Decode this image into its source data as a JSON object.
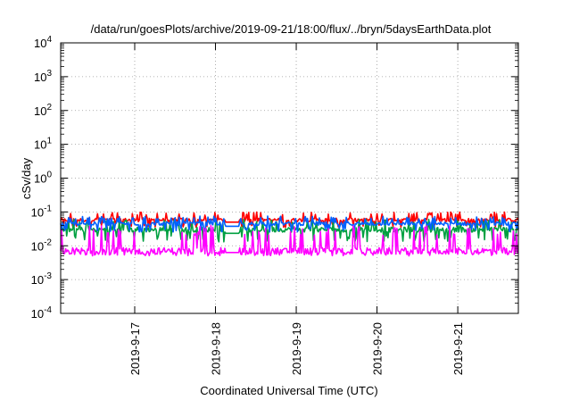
{
  "chart_data": {
    "type": "line",
    "title": "/data/run/goesPlots/archive/2019-09-21/18:00/flux/../bryn/5daysEarthData.plot",
    "xlabel": "Coordinated Universal Time (UTC)",
    "ylabel": "cSv/day",
    "yscale": "log",
    "ylim": [
      0.0001,
      10000
    ],
    "y_ticks": [
      {
        "base": "10",
        "exp": "-4"
      },
      {
        "base": "10",
        "exp": "-3"
      },
      {
        "base": "10",
        "exp": "-2"
      },
      {
        "base": "10",
        "exp": "-1"
      },
      {
        "base": "10",
        "exp": "0"
      },
      {
        "base": "10",
        "exp": "1"
      },
      {
        "base": "10",
        "exp": "2"
      },
      {
        "base": "10",
        "exp": "3"
      },
      {
        "base": "10",
        "exp": "4"
      }
    ],
    "xlim": [
      "2019-09-16 02:00",
      "2019-09-21 18:00"
    ],
    "x_ticks": [
      {
        "label": "2019-9-17",
        "date": "2019-09-17 00:00"
      },
      {
        "label": "2019-9-18",
        "date": "2019-09-18 00:00"
      },
      {
        "label": "2019-9-19",
        "date": "2019-09-19 00:00"
      },
      {
        "label": "2019-9-20",
        "date": "2019-09-20 00:00"
      },
      {
        "label": "2019-9-21",
        "date": "2019-09-21 00:00"
      }
    ],
    "grid": true,
    "legend": "none",
    "series": [
      {
        "color": "#ff0000",
        "typical": 0.058,
        "low": 0.035,
        "high": 0.1
      },
      {
        "color": "#00a040",
        "typical": 0.03,
        "low": 0.013,
        "high": 0.06
      },
      {
        "color": "#0060ff",
        "typical": 0.045,
        "low": 0.025,
        "high": 0.075
      },
      {
        "color": "#ff00ff",
        "typical": 0.007,
        "low": 0.005,
        "high": 0.04
      }
    ]
  }
}
